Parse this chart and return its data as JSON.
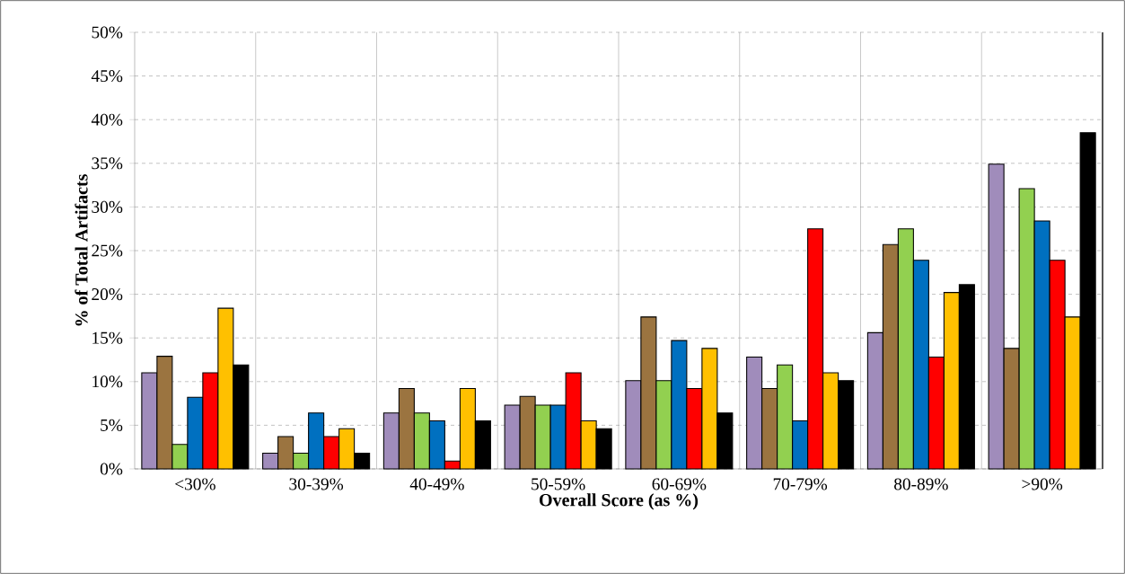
{
  "chart_data": {
    "type": "bar",
    "xlabel": "Overall Score (as %)",
    "ylabel": "% of  Total Artifacts",
    "categories": [
      "<30%",
      "30-39%",
      "40-49%",
      "50-59%",
      "60-69%",
      "70-79%",
      "80-89%",
      ">90%"
    ],
    "series": [
      {
        "color": "#a08cbb",
        "values": [
          11.0,
          1.8,
          6.4,
          7.3,
          10.1,
          12.8,
          15.6,
          34.9
        ]
      },
      {
        "color": "#9b7440",
        "values": [
          12.9,
          3.7,
          9.2,
          8.3,
          17.4,
          9.2,
          25.7,
          13.8
        ]
      },
      {
        "color": "#92d050",
        "values": [
          2.8,
          1.8,
          6.4,
          7.3,
          10.1,
          11.9,
          27.5,
          32.1
        ]
      },
      {
        "color": "#0070c0",
        "values": [
          8.2,
          6.4,
          5.5,
          7.3,
          14.7,
          5.5,
          23.9,
          28.4
        ]
      },
      {
        "color": "#ff0000",
        "values": [
          11.0,
          3.7,
          0.9,
          11.0,
          9.2,
          27.5,
          12.8,
          23.9
        ]
      },
      {
        "color": "#ffc000",
        "values": [
          18.4,
          4.6,
          9.2,
          5.5,
          13.8,
          11.0,
          20.2,
          17.4
        ]
      },
      {
        "color": "#000000",
        "values": [
          11.9,
          1.8,
          5.5,
          4.6,
          6.4,
          10.1,
          21.1,
          38.5
        ]
      }
    ],
    "ylim": [
      0,
      50
    ],
    "yticks": [
      {
        "value": 0,
        "label": "0%"
      },
      {
        "value": 5,
        "label": "5%"
      },
      {
        "value": 10,
        "label": "10%"
      },
      {
        "value": 15,
        "label": "15%"
      },
      {
        "value": 20,
        "label": "20%"
      },
      {
        "value": 25,
        "label": "25%"
      },
      {
        "value": 30,
        "label": "30%"
      },
      {
        "value": 35,
        "label": "35%"
      },
      {
        "value": 40,
        "label": "40%"
      },
      {
        "value": 45,
        "label": "45%"
      },
      {
        "value": 50,
        "label": "50%"
      }
    ],
    "grid": true
  }
}
